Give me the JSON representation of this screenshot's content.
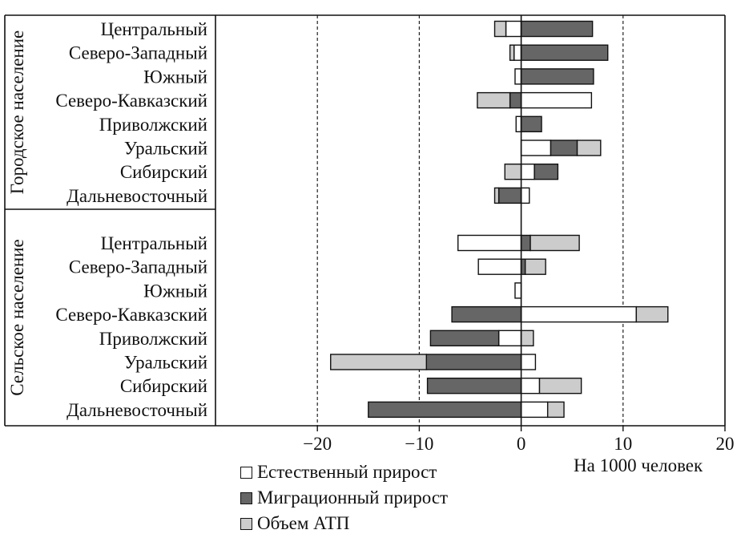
{
  "chart_data": {
    "type": "bar",
    "orientation": "horizontal",
    "stacking": "diverging",
    "x_label": "На 1000 человек",
    "xlim": [
      -30,
      20
    ],
    "x_ticks": [
      -20,
      -10,
      0,
      10,
      20
    ],
    "grid": "dashed vertical lines at -20, -10, 10",
    "groups": [
      {
        "name": "Городское население",
        "categories": [
          "Центральный",
          "Северо-Западный",
          "Южный",
          "Северо-Кавказский",
          "Приволжский",
          "Уральский",
          "Сибирский",
          "Дальневосточный"
        ]
      },
      {
        "name": "Сельское население",
        "categories": [
          "Центральный",
          "Северо-Западный",
          "Южный",
          "Северо-Кавказский",
          "Приволжский",
          "Уральский",
          "Сибирский",
          "Дальневосточный"
        ]
      }
    ],
    "series": [
      {
        "name": "Естественный прирост",
        "color": "#ffffff",
        "values": [
          [
            -1.5,
            -0.7,
            -0.6,
            6.9,
            -0.5,
            2.9,
            1.3,
            0.8
          ],
          [
            -6.2,
            -4.2,
            -0.6,
            11.3,
            -2.2,
            1.4,
            1.8,
            2.6
          ]
        ]
      },
      {
        "name": "Миграционный прирост",
        "color": "#666666",
        "values": [
          [
            7.0,
            8.5,
            7.1,
            -1.1,
            2.0,
            2.6,
            2.3,
            -2.2
          ],
          [
            0.9,
            0.4,
            0,
            -6.8,
            -6.7,
            -9.3,
            -9.2,
            -15.0
          ]
        ]
      },
      {
        "name": "Объем АТП",
        "color": "#cccccc",
        "values": [
          [
            -1.1,
            -0.4,
            0,
            -3.2,
            0,
            2.3,
            -1.6,
            -0.4
          ],
          [
            4.8,
            2.0,
            0,
            3.1,
            1.2,
            -9.4,
            4.1,
            1.6
          ]
        ]
      }
    ],
    "legend": "bottom-left"
  }
}
